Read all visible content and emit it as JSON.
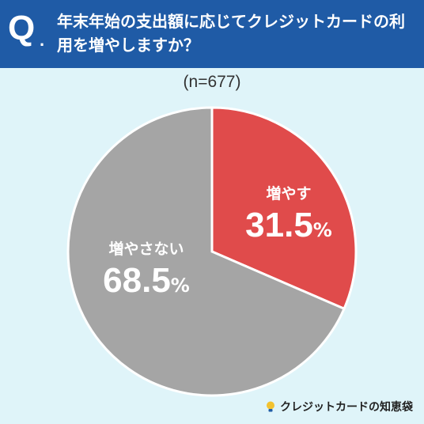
{
  "header": {
    "q_badge": "Q",
    "q_dot": ".",
    "question": "年末年始の支出額に応じてクレジットカードの利用を増やしますか？"
  },
  "sample_size": "(n=677)",
  "chart_data": {
    "type": "pie",
    "categories": [
      "増やす",
      "増やさない"
    ],
    "values": [
      31.5,
      68.5
    ],
    "unit": "%",
    "colors": [
      "#e04b4b",
      "#a5a5a5"
    ],
    "start_angle": "12 o'clock, clockwise",
    "title": "",
    "subtitle": ""
  },
  "labels": {
    "increase": {
      "name": "増やす",
      "value": "31.5",
      "unit": "%"
    },
    "not_increase": {
      "name": "増やさない",
      "value": "68.5",
      "unit": "%"
    }
  },
  "footer": {
    "logo_text": "クレジットカードの知恵袋",
    "logo_icon": "lightbulb-icon"
  }
}
